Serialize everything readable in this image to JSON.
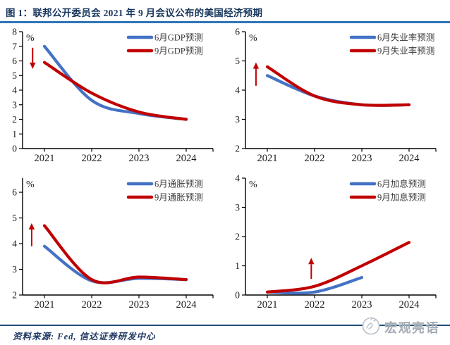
{
  "header": {
    "title": "图 1：联邦公开委员会 2021 年 9 月会议公布的美国经济预期"
  },
  "footer": {
    "source": "资料来源: Fed, 信达证券研发中心",
    "watermark": "宏观亮语"
  },
  "colors": {
    "june_line": "#4472C4",
    "sept_line": "#C00000",
    "arrow": "#C00000",
    "axis": "#000000",
    "tick_text": "#1A1A1A",
    "legend_text": "#3A3A3A",
    "title_text": "#17365D",
    "title_rule": "#2E74B5",
    "footer_rule": "#1F4E79",
    "watermark": "#A3ABB5"
  },
  "chart_data": [
    {
      "type": "line",
      "name": "gdp-forecast",
      "unit": "%",
      "x": [
        "2021",
        "2022",
        "2023",
        "2024"
      ],
      "ylim": [
        0,
        8
      ],
      "ytick_step": 1,
      "ymax_pad": 0,
      "grid": false,
      "legend_position": "top-right",
      "series": [
        {
          "name": "6月GDP预测",
          "color": "june",
          "values": [
            7.0,
            3.3,
            2.4,
            2.0
          ]
        },
        {
          "name": "9月GDP预测",
          "color": "sept",
          "values": [
            5.9,
            3.8,
            2.5,
            2.0
          ]
        }
      ],
      "arrow": {
        "direction": "down",
        "x_year": 2020.75,
        "y_from": 6.9,
        "y_to": 5.45
      }
    },
    {
      "type": "line",
      "name": "unemployment-forecast",
      "unit": "%",
      "x": [
        "2021",
        "2022",
        "2023",
        "2024"
      ],
      "ylim": [
        2,
        6
      ],
      "ytick_step": 1,
      "ymax_pad": 0,
      "grid": false,
      "legend_position": "top-right",
      "series": [
        {
          "name": "6月失业率预测",
          "color": "june",
          "values": [
            4.5,
            3.8,
            3.5,
            3.5
          ]
        },
        {
          "name": "9月失业率预测",
          "color": "sept",
          "values": [
            4.8,
            3.8,
            3.5,
            3.5
          ]
        }
      ],
      "arrow": {
        "direction": "up",
        "x_year": 2020.76,
        "y_from": 4.15,
        "y_to": 4.95
      }
    },
    {
      "type": "line",
      "name": "inflation-forecast",
      "unit": "%",
      "x": [
        "2021",
        "2022",
        "2023",
        "2024"
      ],
      "ylim": [
        2,
        6
      ],
      "ytick_step": 1,
      "ymax_pad": 0.55,
      "grid": false,
      "legend_position": "top-right",
      "series": [
        {
          "name": "6月通胀预测",
          "color": "june",
          "values": [
            3.9,
            2.55,
            2.65,
            2.6
          ]
        },
        {
          "name": "9月通胀预测",
          "color": "sept",
          "values": [
            4.7,
            2.6,
            2.7,
            2.6
          ]
        }
      ],
      "arrow": {
        "direction": "up",
        "x_year": 2020.73,
        "y_from": 3.9,
        "y_to": 4.8
      }
    },
    {
      "type": "line",
      "name": "rate-hike-forecast",
      "unit": "%",
      "x": [
        "2021",
        "2022",
        "2023",
        "2024"
      ],
      "ylim": [
        0,
        4
      ],
      "ytick_step": 1,
      "ymax_pad": 0,
      "grid": false,
      "legend_position": "top-right",
      "series": [
        {
          "name": "6月加息预测",
          "color": "june",
          "values": [
            0.1,
            0.1,
            0.6,
            null
          ]
        },
        {
          "name": "9月加息预测",
          "color": "sept",
          "values": [
            0.1,
            0.3,
            1.0,
            1.8
          ]
        }
      ],
      "arrow": {
        "direction": "up",
        "x_year": 2021.93,
        "y_from": 0.55,
        "y_to": 1.27
      }
    }
  ]
}
